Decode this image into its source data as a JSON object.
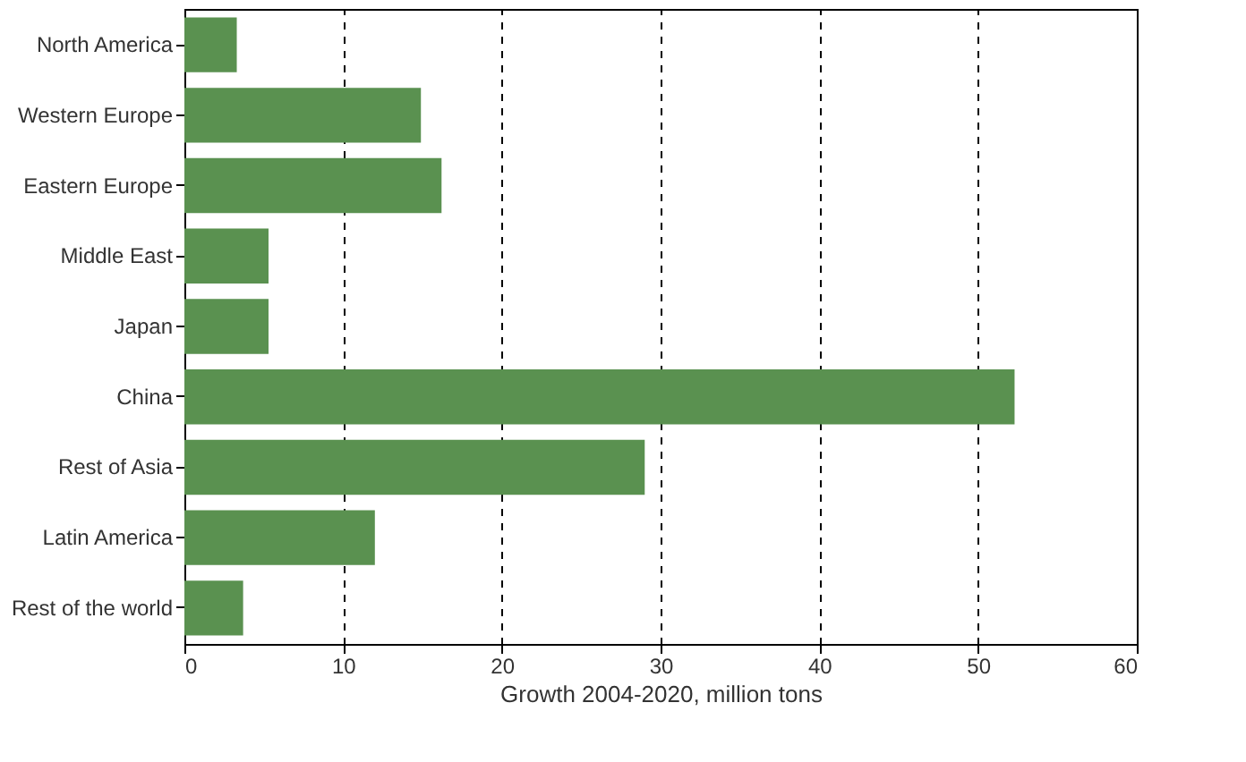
{
  "chart_data": {
    "type": "bar",
    "orientation": "horizontal",
    "xlabel": "Growth 2004-2020, million tons",
    "categories": [
      "North America",
      "Western Europe",
      "Eastern Europe",
      "Middle East",
      "Japan",
      "China",
      "Rest of Asia",
      "Latin America",
      "Rest of the world"
    ],
    "values": [
      3.3,
      14.9,
      16.2,
      5.3,
      5.3,
      52.3,
      29.0,
      12.0,
      3.7
    ],
    "color": "#5a9150",
    "xlim": [
      0,
      60
    ],
    "xticks": [
      0,
      10,
      20,
      30,
      40,
      50,
      60
    ],
    "grid": "x",
    "line_style": "dashed"
  }
}
